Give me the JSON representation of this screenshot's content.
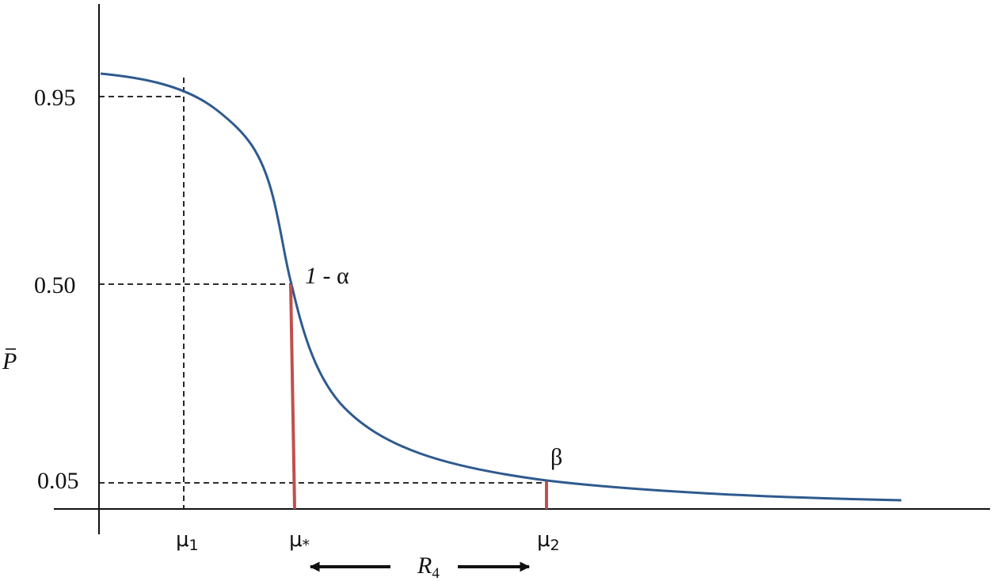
{
  "y_axis": {
    "label_letter": "P",
    "ticks": [
      "0.95",
      "0.50",
      "0.05"
    ]
  },
  "x_axis": {
    "markers": [
      {
        "base": "μ",
        "sub": "1"
      },
      {
        "base": "μ",
        "sub": "*"
      },
      {
        "base": "μ",
        "sub": "2"
      }
    ]
  },
  "annotations": {
    "one_minus_alpha_one": "1",
    "one_minus_alpha_rest": " - α",
    "beta": "β",
    "range_letter": "R",
    "range_sub": "4"
  },
  "colors": {
    "curve": "#2e5a8e",
    "marker_lines": "#c0504d",
    "axes": "#111111",
    "guides": "#111111"
  }
}
